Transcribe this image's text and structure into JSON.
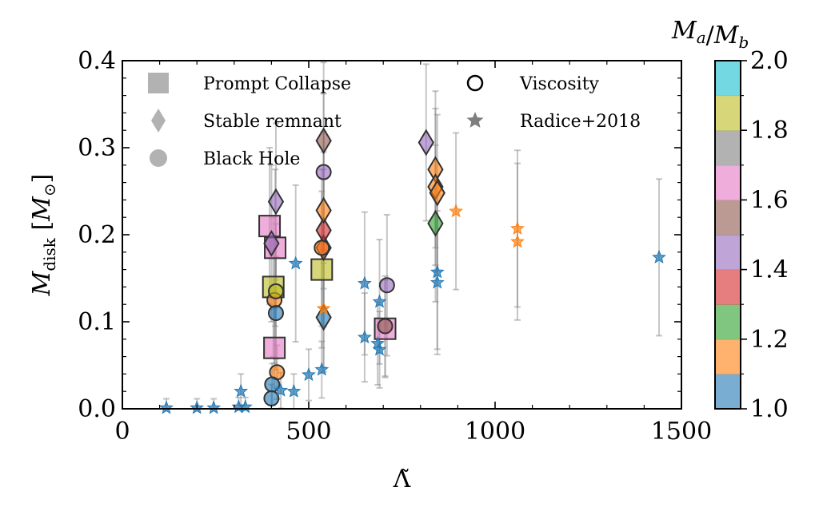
{
  "chart_data": {
    "type": "scatter",
    "xlabel": "Λ̃",
    "ylabel": "M_disk [M_⊙]",
    "xlim": [
      0,
      1500
    ],
    "ylim": [
      0.0,
      0.4
    ],
    "x_ticks": [
      "0",
      "500",
      "1000",
      "1500"
    ],
    "y_ticks": [
      "0.0",
      "0.1",
      "0.2",
      "0.3",
      "0.4"
    ],
    "colorbar": {
      "label": "M_a/M_b",
      "range": [
        1.0,
        2.0
      ],
      "ticks": [
        "1.0",
        "1.2",
        "1.4",
        "1.6",
        "1.8",
        "2.0"
      ],
      "colors": [
        "#1f77b4",
        "#ff7f0e",
        "#2ca02c",
        "#d62728",
        "#9467bd",
        "#8c564b",
        "#e377c2",
        "#7f7f7f",
        "#bcbd22",
        "#17becf"
      ]
    },
    "legend": [
      {
        "marker": "square",
        "label": "Prompt Collapse"
      },
      {
        "marker": "diamond",
        "label": "Stable remnant"
      },
      {
        "marker": "circle",
        "label": "Black Hole"
      },
      {
        "marker": "open-circle",
        "label": "Viscosity"
      },
      {
        "marker": "star",
        "label": "Radice+2018"
      }
    ],
    "series": [
      {
        "marker": "square",
        "points": [
          {
            "x": 395,
            "y": 0.21,
            "q": 1.65
          },
          {
            "x": 410,
            "y": 0.185,
            "q": 1.65
          },
          {
            "x": 405,
            "y": 0.14,
            "q": 1.85
          },
          {
            "x": 408,
            "y": 0.07,
            "q": 1.65
          },
          {
            "x": 535,
            "y": 0.16,
            "q": 1.85
          },
          {
            "x": 705,
            "y": 0.092,
            "q": 1.65
          }
        ]
      },
      {
        "marker": "diamond",
        "points": [
          {
            "x": 400,
            "y": 0.19,
            "q": 1.45
          },
          {
            "x": 412,
            "y": 0.238,
            "q": 1.45
          },
          {
            "x": 540,
            "y": 0.308,
            "q": 1.55
          },
          {
            "x": 540,
            "y": 0.105,
            "q": 1.0
          },
          {
            "x": 540,
            "y": 0.185,
            "q": 1.35
          },
          {
            "x": 540,
            "y": 0.205,
            "q": 1.35
          },
          {
            "x": 540,
            "y": 0.228,
            "q": 1.1
          },
          {
            "x": 815,
            "y": 0.306,
            "q": 1.45
          },
          {
            "x": 840,
            "y": 0.275,
            "q": 1.1
          },
          {
            "x": 840,
            "y": 0.255,
            "q": 1.1
          },
          {
            "x": 845,
            "y": 0.248,
            "q": 1.1
          },
          {
            "x": 840,
            "y": 0.213,
            "q": 1.25
          }
        ]
      },
      {
        "marker": "circle",
        "points": [
          {
            "x": 408,
            "y": 0.125,
            "q": 1.1
          },
          {
            "x": 412,
            "y": 0.135,
            "q": 1.85
          },
          {
            "x": 412,
            "y": 0.11,
            "q": 1.0
          },
          {
            "x": 415,
            "y": 0.042,
            "q": 1.15
          },
          {
            "x": 402,
            "y": 0.028,
            "q": 1.0
          },
          {
            "x": 400,
            "y": 0.012,
            "q": 1.0
          },
          {
            "x": 540,
            "y": 0.272,
            "q": 1.45
          },
          {
            "x": 535,
            "y": 0.185,
            "q": 1.15
          },
          {
            "x": 710,
            "y": 0.142,
            "q": 1.45
          },
          {
            "x": 705,
            "y": 0.095,
            "q": 1.5
          }
        ]
      },
      {
        "marker": "star",
        "points": [
          {
            "x": 118,
            "y": 0.001,
            "q": 1.0
          },
          {
            "x": 200,
            "y": 0.001,
            "q": 1.0
          },
          {
            "x": 245,
            "y": 0.001,
            "q": 1.0
          },
          {
            "x": 312,
            "y": 0.002,
            "q": 1.0
          },
          {
            "x": 318,
            "y": 0.02,
            "q": 1.0
          },
          {
            "x": 330,
            "y": 0.002,
            "q": 1.0
          },
          {
            "x": 425,
            "y": 0.021,
            "q": 1.0
          },
          {
            "x": 460,
            "y": 0.02,
            "q": 1.0
          },
          {
            "x": 465,
            "y": 0.167,
            "q": 1.0
          },
          {
            "x": 500,
            "y": 0.039,
            "q": 1.0
          },
          {
            "x": 535,
            "y": 0.045,
            "q": 1.0
          },
          {
            "x": 540,
            "y": 0.115,
            "q": 1.1
          },
          {
            "x": 650,
            "y": 0.144,
            "q": 1.0
          },
          {
            "x": 650,
            "y": 0.082,
            "q": 1.0
          },
          {
            "x": 690,
            "y": 0.123,
            "q": 1.0
          },
          {
            "x": 685,
            "y": 0.075,
            "q": 1.0
          },
          {
            "x": 690,
            "y": 0.068,
            "q": 1.0
          },
          {
            "x": 845,
            "y": 0.157,
            "q": 1.0
          },
          {
            "x": 845,
            "y": 0.145,
            "q": 1.0
          },
          {
            "x": 895,
            "y": 0.227,
            "q": 1.1
          },
          {
            "x": 1060,
            "y": 0.207,
            "q": 1.1
          },
          {
            "x": 1060,
            "y": 0.192,
            "q": 1.1
          },
          {
            "x": 1440,
            "y": 0.174,
            "q": 1.0
          }
        ]
      }
    ]
  }
}
